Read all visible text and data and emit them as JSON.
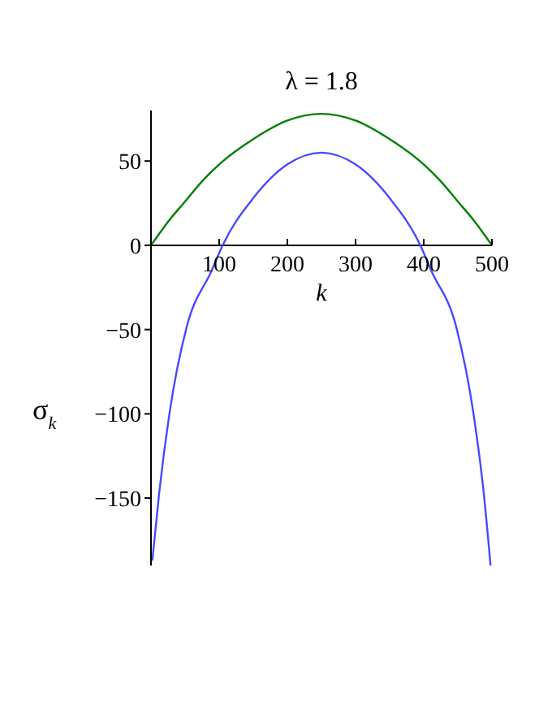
{
  "chart_data": {
    "type": "line",
    "title": "λ = 1.8",
    "xlabel": "k",
    "ylabel": "σ$_{k}$",
    "xlim": [
      0,
      500
    ],
    "xticks": [
      100,
      200,
      300,
      400,
      500
    ],
    "ylim": [
      -190,
      80
    ],
    "yticks": [
      -150,
      -100,
      -50,
      0,
      50
    ],
    "grid": false,
    "legend": false,
    "marker": "none",
    "line_style": "solid",
    "series": [
      {
        "color": "#008000",
        "x": [
          0,
          25,
          50,
          75,
          100,
          150,
          200,
          250,
          300,
          350,
          400,
          425,
          450,
          475,
          500
        ],
        "values": [
          0,
          14,
          26,
          38,
          48,
          63,
          74,
          78,
          74,
          63,
          48,
          38,
          26,
          14,
          0
        ]
      },
      {
        "color": "#4848ff",
        "x": [
          2,
          12,
          27,
          52,
          89,
          105,
          150,
          200,
          250,
          300,
          350,
          395,
          411,
          448,
          473,
          488,
          498
        ],
        "values": [
          -187,
          -147,
          -100,
          -49,
          -15,
          0,
          28,
          48,
          55,
          48,
          28,
          0,
          -15,
          -49,
          -100,
          -147,
          -190
        ]
      }
    ]
  }
}
